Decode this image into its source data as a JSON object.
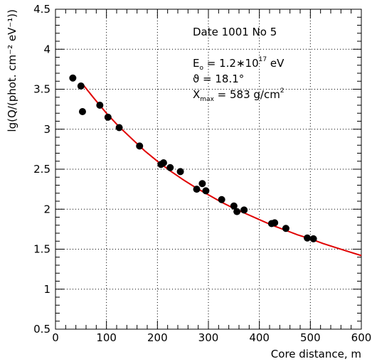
{
  "chart_data": {
    "type": "scatter",
    "xlabel": "Core distance, m",
    "ylabel": "lg(Q/(phot. cm⁻² eV⁻¹))",
    "xlim": [
      0,
      600
    ],
    "ylim": [
      0.5,
      4.5
    ],
    "x_ticks": [
      "0",
      "100",
      "200",
      "300",
      "400",
      "500",
      "600"
    ],
    "y_ticks": [
      "0.5",
      "1",
      "1.5",
      "2",
      "2.5",
      "3",
      "3.5",
      "4",
      "4.5"
    ],
    "grid": true,
    "series": [
      {
        "type": "scatter",
        "color": "#000000",
        "points": [
          [
            34,
            3.64
          ],
          [
            50,
            3.54
          ],
          [
            53,
            3.22
          ],
          [
            87,
            3.3
          ],
          [
            103,
            3.15
          ],
          [
            125,
            3.02
          ],
          [
            165,
            2.79
          ],
          [
            207,
            2.56
          ],
          [
            212,
            2.58
          ],
          [
            225,
            2.52
          ],
          [
            245,
            2.47
          ],
          [
            277,
            2.25
          ],
          [
            288,
            2.32
          ],
          [
            295,
            2.23
          ],
          [
            326,
            2.12
          ],
          [
            350,
            2.04
          ],
          [
            356,
            1.97
          ],
          [
            370,
            1.99
          ],
          [
            424,
            1.82
          ],
          [
            430,
            1.83
          ],
          [
            452,
            1.76
          ],
          [
            494,
            1.64
          ],
          [
            506,
            1.63
          ]
        ]
      },
      {
        "type": "line",
        "color": "#e00000",
        "x": [
          55,
          75,
          100,
          125,
          150,
          175,
          200,
          225,
          250,
          275,
          300,
          325,
          350,
          375,
          400,
          425,
          450,
          475,
          500,
          525,
          550,
          575,
          600
        ],
        "y": [
          3.55,
          3.39,
          3.2,
          3.03,
          2.88,
          2.73,
          2.6,
          2.48,
          2.37,
          2.27,
          2.18,
          2.09,
          2.01,
          1.94,
          1.87,
          1.8,
          1.74,
          1.68,
          1.63,
          1.57,
          1.52,
          1.47,
          1.42
        ]
      }
    ],
    "annotations": {
      "date": "Date 1001 No 5",
      "energy_prefix": "E",
      "energy_sub": "o",
      "energy_value": " = 1.2∗10",
      "energy_exp": "17",
      "energy_unit": " eV",
      "theta": "ϑ = 18.1°",
      "xmax_prefix": "X",
      "xmax_sub": "max",
      "xmax_value": " = 583 g/cm",
      "xmax_exp": "2"
    }
  }
}
